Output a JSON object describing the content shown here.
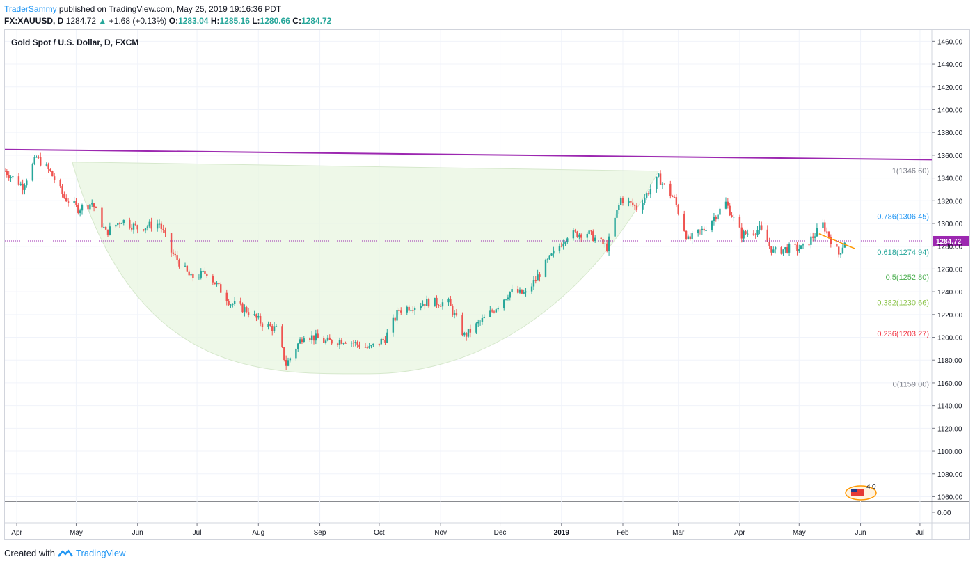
{
  "header": {
    "user": "TraderSammy",
    "text": "published on TradingView.com, May 25, 2019 19:16:36 PDT"
  },
  "quote": {
    "symbol": "FX:XAUUSD, D",
    "last": "1284.72",
    "change": "+1.68 (+0.13%)",
    "o_label": "O:",
    "o": "1283.04",
    "h_label": "H:",
    "h": "1285.16",
    "l_label": "L:",
    "l": "1280.66",
    "c_label": "C:",
    "c": "1284.72"
  },
  "chart_data": {
    "type": "candlestick",
    "title": "Gold Spot / U.S. Dollar, D, FXCM",
    "y_ticks": [
      "1460.00",
      "1440.00",
      "1420.00",
      "1400.00",
      "1380.00",
      "1360.00",
      "1340.00",
      "1320.00",
      "1300.00",
      "1280.00",
      "1260.00",
      "1240.00",
      "1220.00",
      "1200.00",
      "1180.00",
      "1160.00",
      "1140.00",
      "1120.00",
      "1100.00",
      "1080.00",
      "1060.00"
    ],
    "ylim": [
      1056,
      1470
    ],
    "x_ticks": [
      "Apr",
      "May",
      "Jun",
      "Jul",
      "Aug",
      "Sep",
      "Oct",
      "Nov",
      "Dec",
      "2019",
      "Feb",
      "Mar",
      "Apr",
      "May",
      "Jun",
      "Jul"
    ],
    "x_start": "2018-03-26",
    "x_end": "2019-07-07",
    "current_price": 1284.72,
    "current_price_label": "1284.72",
    "fib_levels": [
      {
        "ratio": "1",
        "value": 1346.6,
        "label": "1(1346.60)",
        "color": "#787b86"
      },
      {
        "ratio": "0.786",
        "value": 1306.45,
        "label": "0.786(1306.45)",
        "color": "#2196f3"
      },
      {
        "ratio": "0.618",
        "value": 1274.94,
        "label": "0.618(1274.94)",
        "color": "#26a69a"
      },
      {
        "ratio": "0.5",
        "value": 1252.8,
        "label": "0.5(1252.80)",
        "color": "#4caf50"
      },
      {
        "ratio": "0.382",
        "value": 1230.66,
        "label": "0.382(1230.66)",
        "color": "#8bc34a"
      },
      {
        "ratio": "0.236",
        "value": 1203.27,
        "label": "0.236(1203.27)",
        "color": "#f23645"
      },
      {
        "ratio": "0",
        "value": 1159.0,
        "label": "0(1159.00)",
        "color": "#787b86"
      }
    ],
    "resistance_line": {
      "from": {
        "x": "2018-03-26",
        "y": 1365
      },
      "to": {
        "x": "2019-07-07",
        "y": 1356
      },
      "color": "#9c27b0"
    },
    "cup_shape": {
      "left": {
        "x": "2018-04-29",
        "y": 1354
      },
      "bottom": {
        "x": "2018-09-26",
        "y": 1168
      },
      "right": {
        "x": "2019-02-19",
        "y": 1346
      },
      "color": "#e8f5e0"
    },
    "flag_line": {
      "from": {
        "x": "2019-05-11",
        "y": 1291
      },
      "to": {
        "x": "2019-05-29",
        "y": 1278
      },
      "color": "#ff9800"
    },
    "price_path": [
      [
        "2018-03-26",
        1346
      ],
      [
        "2018-04-04",
        1333
      ],
      [
        "2018-04-11",
        1358
      ],
      [
        "2018-04-18",
        1345
      ],
      [
        "2018-04-25",
        1323
      ],
      [
        "2018-05-02",
        1313
      ],
      [
        "2018-05-09",
        1318
      ],
      [
        "2018-05-16",
        1292
      ],
      [
        "2018-05-24",
        1303
      ],
      [
        "2018-06-01",
        1296
      ],
      [
        "2018-06-12",
        1300
      ],
      [
        "2018-06-18",
        1275
      ],
      [
        "2018-06-28",
        1252
      ],
      [
        "2018-07-06",
        1257
      ],
      [
        "2018-07-18",
        1230
      ],
      [
        "2018-07-26",
        1224
      ],
      [
        "2018-08-03",
        1212
      ],
      [
        "2018-08-10",
        1207
      ],
      [
        "2018-08-15",
        1176
      ],
      [
        "2018-08-24",
        1203
      ],
      [
        "2018-09-04",
        1196
      ],
      [
        "2018-09-14",
        1198
      ],
      [
        "2018-09-26",
        1190
      ],
      [
        "2018-10-04",
        1199
      ],
      [
        "2018-10-11",
        1224
      ],
      [
        "2018-10-25",
        1231
      ],
      [
        "2018-11-05",
        1230
      ],
      [
        "2018-11-13",
        1201
      ],
      [
        "2018-11-26",
        1221
      ],
      [
        "2018-12-06",
        1240
      ],
      [
        "2018-12-14",
        1238
      ],
      [
        "2018-12-24",
        1264
      ],
      [
        "2019-01-04",
        1290
      ],
      [
        "2019-01-14",
        1292
      ],
      [
        "2019-01-24",
        1279
      ],
      [
        "2019-01-31",
        1322
      ],
      [
        "2019-02-08",
        1314
      ],
      [
        "2019-02-19",
        1340
      ],
      [
        "2019-02-27",
        1321
      ],
      [
        "2019-03-06",
        1285
      ],
      [
        "2019-03-14",
        1295
      ],
      [
        "2019-03-25",
        1318
      ],
      [
        "2019-04-02",
        1290
      ],
      [
        "2019-04-11",
        1295
      ],
      [
        "2019-04-18",
        1275
      ],
      [
        "2019-04-25",
        1278
      ],
      [
        "2019-05-03",
        1278
      ],
      [
        "2019-05-13",
        1299
      ],
      [
        "2019-05-21",
        1273
      ],
      [
        "2019-05-24",
        1284.72
      ]
    ],
    "legend_badge": "4",
    "legend_badge2": "0"
  },
  "footer": {
    "created": "Created with",
    "brand": "TradingView"
  }
}
